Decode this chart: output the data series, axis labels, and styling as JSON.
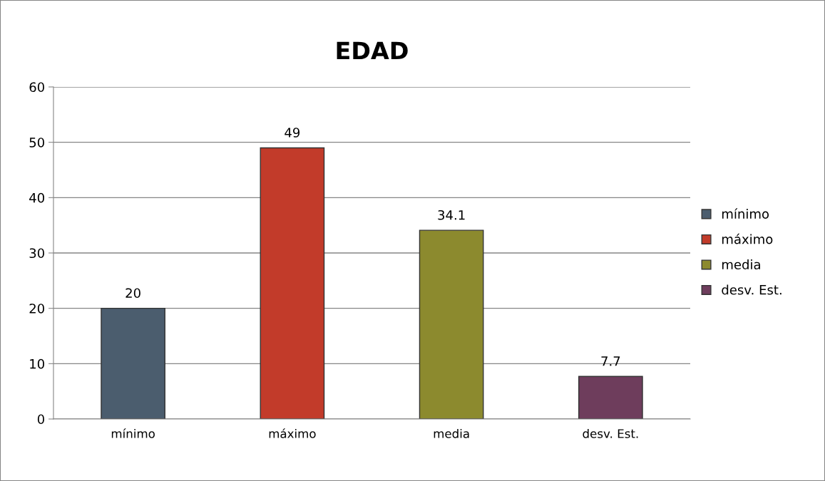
{
  "chart_data": {
    "type": "bar",
    "title": "EDAD",
    "categories": [
      "mínimo",
      "máximo",
      "media",
      "desv. Est."
    ],
    "series": [
      {
        "name": "mínimo",
        "color": "#4b5d6e",
        "values": [
          20,
          null,
          null,
          null
        ]
      },
      {
        "name": "máximo",
        "color": "#c23b2a",
        "values": [
          null,
          49,
          null,
          null
        ]
      },
      {
        "name": "media",
        "color": "#8c8a2e",
        "values": [
          null,
          null,
          34.1,
          null
        ]
      },
      {
        "name": "desv. Est.",
        "color": "#6e3d5c",
        "values": [
          null,
          null,
          null,
          7.7
        ]
      }
    ],
    "ylim": [
      0,
      60
    ],
    "yticks": [
      0,
      10,
      20,
      30,
      40,
      50,
      60
    ],
    "grid": "y",
    "legend": "right",
    "data_labels": true
  }
}
